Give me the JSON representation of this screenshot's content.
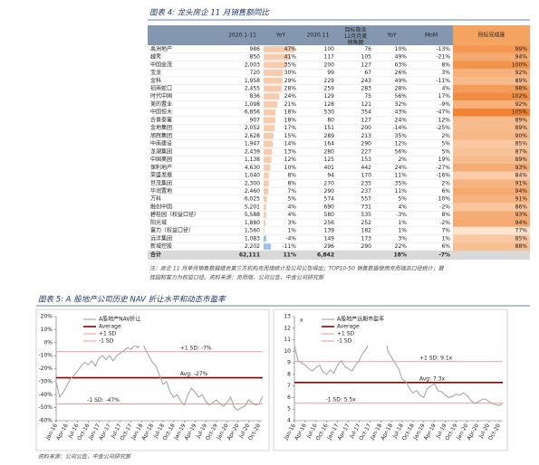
{
  "figure4_title": "图表 4: 龙头房企 11 月销售额同比",
  "table": {
    "headers": [
      "2020.1-11",
      "YoY",
      "2020.11",
      [
        "目标隐含",
        "12月月度",
        "销售额"
      ],
      "YoY",
      "MoM",
      "目标完成度"
    ],
    "rows": [
      [
        "禹洲地产",
        "986",
        "47%",
        "100",
        "76",
        "10%",
        "-13%",
        "99%"
      ],
      [
        "越秀",
        "850",
        "41%",
        "117",
        "105",
        "49%",
        "-21%",
        "94%"
      ],
      [
        "中国金茂",
        "2,003",
        "35%",
        "200",
        "127",
        "63%",
        "8%",
        "100%"
      ],
      [
        "宝龙",
        "720",
        "30%",
        "99",
        "67",
        "26%",
        "3%",
        "92%"
      ],
      [
        "金科",
        "1,958",
        "29%",
        "229",
        "243",
        "49%",
        "-11%",
        "89%"
      ],
      [
        "招商蛇口",
        "2,455",
        "28%",
        "259",
        "283",
        "28%",
        "4%",
        "98%"
      ],
      [
        "时代中国",
        "836",
        "24%",
        "129",
        "75",
        "56%",
        "17%",
        "102%"
      ],
      [
        "美的置业",
        "1,098",
        "21%",
        "128",
        "121",
        "32%",
        "-9%",
        "92%"
      ],
      [
        "中国恒大",
        "6,856",
        "18%",
        "530",
        "354",
        "43%",
        "-47%",
        "105%"
      ],
      [
        "合景泰富",
        "907",
        "18%",
        "80",
        "127",
        "24%",
        "12%",
        "89%"
      ],
      [
        "金地集团",
        "2,052",
        "17%",
        "151",
        "200",
        "-14%",
        "-25%",
        "89%"
      ],
      [
        "旭辉集团",
        "2,628",
        "15%",
        "289",
        "213",
        "35%",
        "2%",
        "90%"
      ],
      [
        "中南建设",
        "1,947",
        "14%",
        "164",
        "290",
        "12%",
        "5%",
        "85%"
      ],
      [
        "龙湖集团",
        "2,439",
        "13%",
        "280",
        "227",
        "56%",
        "5%",
        "87%"
      ],
      [
        "中国奥园",
        "1,138",
        "12%",
        "125",
        "153",
        "2%",
        "19%",
        "89%"
      ],
      [
        "保利地产",
        "4,630",
        "10%",
        "401",
        "442",
        "24%",
        "-27%",
        "93%"
      ],
      [
        "荣盛发展",
        "1,040",
        "8%",
        "94",
        "170",
        "11%",
        "-16%",
        "84%"
      ],
      [
        "世茂集团",
        "2,300",
        "8%",
        "270",
        "235",
        "35%",
        "2%",
        "91%"
      ],
      [
        "华润置地",
        "2,460",
        "7%",
        "290",
        "237",
        "11%",
        "6%",
        "94%"
      ],
      [
        "万科",
        "6,025",
        "5%",
        "574",
        "557",
        "5%",
        "10%",
        "91%"
      ],
      [
        "融创中国",
        "5,201",
        "4%",
        "690",
        "731",
        "4%",
        "-2%",
        "86%"
      ],
      [
        "碧桂园（权益口径）",
        "5,588",
        "4%",
        "580",
        "535",
        "-3%",
        "8%",
        "93%"
      ],
      [
        "阳光城",
        "1,880",
        "3%",
        "256",
        "252",
        "1%",
        "-2%",
        "94%"
      ],
      [
        "富力（权益口径）",
        "1,560",
        "1%",
        "139",
        "182",
        "1%",
        "7%",
        "77%"
      ],
      [
        "远洋集团",
        "1,083",
        "-4%",
        "149",
        "173",
        "3%",
        "1%",
        "85%"
      ],
      [
        "新城控股",
        "2,202",
        "-11%",
        "296",
        "290",
        "22%",
        "6%",
        "88%"
      ]
    ],
    "total": [
      "合计",
      "62,111",
      "11%",
      "6,842",
      null,
      "18%",
      "-7%",
      null
    ]
  },
  "note": [
    "注：房企 11 月单月销售数据结合第三方机构克而瑞统计及公司公告得出；TOP10-50 销售数据使用克而瑞总口径统计；碧",
    "桂园和富力为权益口径。资料来源：克而瑞，公司公告，中金公司研究部"
  ],
  "figure5_title": "图表 5: A 股地产公司历史 NAV 折让水平和动态市盈率",
  "chart_data": [
    {
      "type": "line",
      "categories": [
        "Jan-16",
        null,
        null,
        "Apr-16",
        null,
        null,
        "Jul-16",
        null,
        null,
        "Oct-16",
        null,
        null,
        "Jan-17",
        null,
        null,
        "Apr-17",
        null,
        null,
        "Jul-17",
        null,
        null,
        "Oct-17",
        null,
        null,
        "Jan-18",
        null,
        null,
        "Apr-18",
        null,
        null,
        "Jul-18",
        null,
        null,
        "Oct-18",
        null,
        null,
        "Jan-19",
        null,
        null,
        "Apr-19",
        null,
        null,
        "Jul-19",
        null,
        null,
        "Oct-19",
        null,
        null,
        "Jan-20",
        null,
        null,
        "Apr-20",
        null,
        null,
        "Jul-20",
        null,
        null,
        "Oct-20",
        null
      ],
      "series": [
        {
          "name": "A股地产NAV折让",
          "color": "#a6a6a6",
          "values": [
            -30,
            -42,
            -38,
            -33,
            -28,
            -25,
            -22,
            -18,
            -15,
            -17,
            -14,
            -18,
            -12,
            -10,
            -13,
            -10,
            -14,
            -10,
            -8,
            -6,
            -4,
            -5,
            -2,
            -4,
            2,
            -5,
            -10,
            -15,
            -18,
            -25,
            -32,
            -30,
            -38,
            -42,
            -40,
            -45,
            -48,
            -40,
            -35,
            -38,
            -42,
            -40,
            -45,
            -48,
            -46,
            -44,
            -47,
            -49,
            -46,
            -42,
            -50,
            -52,
            -50,
            -49,
            -44,
            -46,
            -48,
            -47,
            -41
          ]
        }
      ],
      "reference_lines": [
        {
          "name": "Average",
          "value": -27,
          "label": "Avg: -27%",
          "color": "#8b0000"
        },
        {
          "name": "+1 SD",
          "value": -7,
          "label": "+1 SD: -7%",
          "color": "#e06666"
        },
        {
          "name": "-1 SD",
          "value": -47,
          "label": "-1 SD: -47%",
          "color": "#e06666"
        }
      ],
      "ylim": [
        -60,
        20
      ],
      "yticks": [
        {
          "value": 20,
          "label": "20%"
        },
        {
          "value": 10,
          "label": "10%"
        },
        {
          "value": 0,
          "label": "0%"
        },
        {
          "value": -10,
          "label": "-10%"
        },
        {
          "value": -20,
          "label": "-20%"
        },
        {
          "value": -30,
          "label": "-30%"
        },
        {
          "value": -40,
          "label": "-40%"
        },
        {
          "value": -50,
          "label": "-50%"
        },
        {
          "value": -60,
          "label": "-60%"
        }
      ]
    },
    {
      "type": "line",
      "y_unit_label": "x",
      "categories": [
        "Jan-16",
        null,
        null,
        "Apr-16",
        null,
        null,
        "Jul-16",
        null,
        null,
        "Oct-16",
        null,
        null,
        "Jan-17",
        null,
        null,
        "Apr-17",
        null,
        null,
        "Jul-17",
        null,
        null,
        "Oct-17",
        null,
        null,
        "Jan-18",
        null,
        null,
        "Apr-18",
        null,
        null,
        "Jul-18",
        null,
        null,
        "Oct-18",
        null,
        null,
        "Jan-19",
        null,
        null,
        "Apr-19",
        null,
        null,
        "Jul-19",
        null,
        null,
        "Oct-19",
        null,
        null,
        "Jan-20",
        null,
        null,
        "Apr-20",
        null,
        null,
        "Jul-20",
        null,
        null,
        "Oct-20",
        null
      ],
      "series": [
        {
          "name": "A股地产远期市盈率",
          "color": "#a6a6a6",
          "values": [
            10.5,
            9.2,
            9.0,
            8.8,
            8.5,
            8.3,
            8.6,
            8.8,
            8.2,
            8.0,
            8.4,
            8.1,
            8.8,
            9.2,
            8.7,
            8.5,
            8.3,
            8.8,
            9.2,
            9.8,
            10.2,
            11.0,
            12.0,
            11.5,
            12.8,
            12.0,
            10.0,
            9.5,
            9.0,
            8.5,
            7.6,
            7.4,
            6.8,
            6.4,
            6.6,
            6.2,
            6.0,
            6.8,
            7.0,
            7.2,
            6.6,
            6.5,
            6.2,
            6.0,
            6.1,
            6.3,
            6.2,
            6.4,
            6.2,
            5.8,
            5.5,
            5.6,
            5.8,
            5.9,
            5.7,
            5.5,
            5.4,
            5.3,
            5.5
          ]
        }
      ],
      "reference_lines": [
        {
          "name": "Average",
          "value": 7.3,
          "label": "Avg: 7.3x",
          "color": "#8b0000"
        },
        {
          "name": "+1 SD",
          "value": 9.1,
          "label": "+1 SD: 9.1x",
          "color": "#e06666"
        },
        {
          "name": "-1 SD",
          "value": 5.5,
          "label": "-1 SD: 5.5x",
          "color": "#e06666"
        }
      ],
      "ylim": [
        4,
        13
      ],
      "yticks": [
        4,
        5,
        6,
        7,
        8,
        9,
        10,
        11,
        12,
        13
      ]
    }
  ],
  "source": "资料来源：公司公告，中金公司研究部"
}
